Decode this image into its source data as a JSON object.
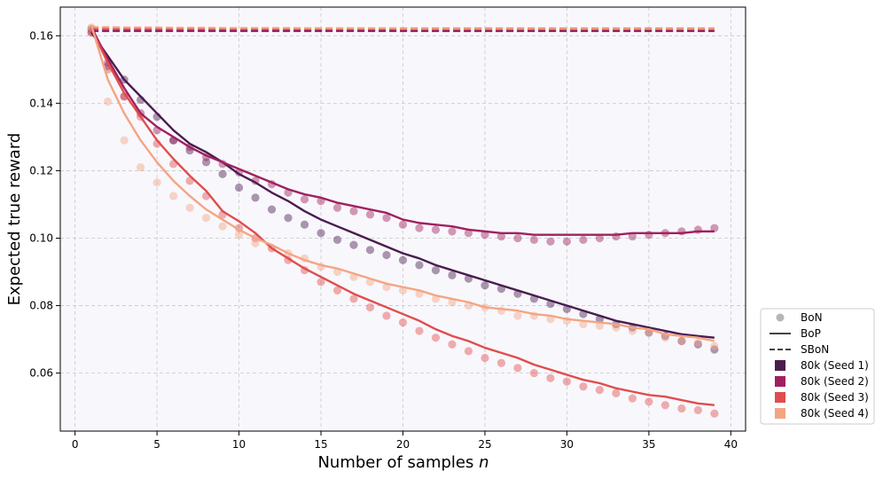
{
  "chart_data": {
    "type": "line",
    "title": "",
    "xlabel": "Number of samples n",
    "xlabel_main": "Number of samples",
    "xlabel_var": "n",
    "ylabel": "Expected true reward",
    "xlim": [
      -0.9,
      40.9
    ],
    "ylim": [
      0.0428,
      0.1685
    ],
    "xticks": [
      0,
      5,
      10,
      15,
      20,
      25,
      30,
      35,
      40
    ],
    "yticks": [
      0.06,
      0.08,
      0.1,
      0.12,
      0.14,
      0.16
    ],
    "ytick_labels": [
      "0.06",
      "0.08",
      "0.10",
      "0.12",
      "0.14",
      "0.16"
    ],
    "grid": true,
    "legend_position": "outside-right-bottom",
    "legend": {
      "styles": [
        {
          "label": "BoN",
          "marker": "circle"
        },
        {
          "label": "BoP",
          "marker": "solid-line"
        },
        {
          "label": "SBoN",
          "marker": "dashed-line"
        }
      ],
      "series_labels": [
        "80k (Seed 1)",
        "80k (Seed 2)",
        "80k (Seed 3)",
        "80k (Seed 4)"
      ]
    },
    "x": [
      1,
      2,
      3,
      4,
      5,
      6,
      7,
      8,
      9,
      10,
      11,
      12,
      13,
      14,
      15,
      16,
      17,
      18,
      19,
      20,
      21,
      22,
      23,
      24,
      25,
      26,
      27,
      28,
      29,
      30,
      31,
      32,
      33,
      34,
      35,
      36,
      37,
      38,
      39
    ],
    "series": [
      {
        "name": "80k (Seed 1)",
        "color": "#4a1c4f",
        "bon": [
          0.162,
          0.151,
          0.147,
          0.141,
          0.136,
          0.129,
          0.126,
          0.1225,
          0.119,
          0.115,
          0.112,
          0.1085,
          0.106,
          0.104,
          0.1015,
          0.0995,
          0.098,
          0.0965,
          0.095,
          0.0935,
          0.092,
          0.0905,
          0.089,
          0.088,
          0.086,
          0.085,
          0.0835,
          0.082,
          0.0805,
          0.079,
          0.0775,
          0.076,
          0.0745,
          0.0735,
          0.072,
          0.071,
          0.0695,
          0.0685,
          0.067
        ],
        "bop": [
          0.161,
          0.154,
          0.147,
          0.142,
          0.137,
          0.132,
          0.128,
          0.1255,
          0.1225,
          0.119,
          0.1165,
          0.1135,
          0.111,
          0.108,
          0.1055,
          0.1035,
          0.1015,
          0.0995,
          0.0975,
          0.0955,
          0.094,
          0.092,
          0.0905,
          0.089,
          0.0875,
          0.086,
          0.0845,
          0.083,
          0.0815,
          0.08,
          0.0785,
          0.077,
          0.0755,
          0.0745,
          0.0735,
          0.0725,
          0.0715,
          0.071,
          0.0705
        ],
        "sbon": [
          0.1614,
          0.1614,
          0.1614,
          0.1614,
          0.1614,
          0.1614,
          0.1614,
          0.1614,
          0.1614,
          0.1614,
          0.1614,
          0.1614,
          0.1614,
          0.1614,
          0.1614,
          0.1614,
          0.1614,
          0.1614,
          0.1614,
          0.1614,
          0.1614,
          0.1614,
          0.1614,
          0.1614,
          0.1614,
          0.1614,
          0.1614,
          0.1614,
          0.1614,
          0.1614,
          0.1614,
          0.1614,
          0.1614,
          0.1614,
          0.1614,
          0.1614,
          0.1614,
          0.1614,
          0.1614
        ]
      },
      {
        "name": "80k (Seed 2)",
        "color": "#a0215f",
        "bon": [
          0.161,
          0.152,
          0.142,
          0.137,
          0.132,
          0.129,
          0.127,
          0.124,
          0.122,
          0.1195,
          0.117,
          0.116,
          0.1135,
          0.1115,
          0.111,
          0.109,
          0.108,
          0.107,
          0.106,
          0.104,
          0.103,
          0.1025,
          0.102,
          0.1015,
          0.101,
          0.1005,
          0.1,
          0.0995,
          0.099,
          0.099,
          0.0995,
          0.1,
          0.1005,
          0.1005,
          0.101,
          0.1015,
          0.102,
          0.1025,
          0.103
        ],
        "bop": [
          0.1625,
          0.153,
          0.1445,
          0.137,
          0.133,
          0.13,
          0.127,
          0.1245,
          0.1225,
          0.1205,
          0.1185,
          0.1165,
          0.1145,
          0.113,
          0.112,
          0.1105,
          0.1095,
          0.1085,
          0.1075,
          0.1055,
          0.1045,
          0.104,
          0.1035,
          0.1025,
          0.102,
          0.1015,
          0.1015,
          0.101,
          0.101,
          0.101,
          0.101,
          0.101,
          0.101,
          0.1015,
          0.1015,
          0.1015,
          0.1015,
          0.102,
          0.102
        ],
        "sbon": [
          0.1616,
          0.1616,
          0.1616,
          0.1616,
          0.1616,
          0.1616,
          0.1616,
          0.1616,
          0.1616,
          0.1616,
          0.1616,
          0.1616,
          0.1616,
          0.1616,
          0.1616,
          0.1616,
          0.1616,
          0.1616,
          0.1616,
          0.1616,
          0.1616,
          0.1616,
          0.1616,
          0.1616,
          0.1616,
          0.1616,
          0.1616,
          0.1616,
          0.1616,
          0.1616,
          0.1616,
          0.1616,
          0.1616,
          0.1616,
          0.1616,
          0.1616,
          0.1616,
          0.1616,
          0.1616
        ]
      },
      {
        "name": "80k (Seed 3)",
        "color": "#e04d4d",
        "bon": [
          0.161,
          0.15,
          0.142,
          0.136,
          0.128,
          0.122,
          0.117,
          0.1125,
          0.107,
          0.103,
          0.1,
          0.097,
          0.0935,
          0.0905,
          0.087,
          0.0845,
          0.082,
          0.0795,
          0.077,
          0.075,
          0.0725,
          0.0705,
          0.0685,
          0.0665,
          0.0645,
          0.063,
          0.0615,
          0.06,
          0.0585,
          0.0575,
          0.056,
          0.055,
          0.054,
          0.0525,
          0.0515,
          0.0505,
          0.0495,
          0.049,
          0.048
        ],
        "bop": [
          0.162,
          0.152,
          0.143,
          0.136,
          0.129,
          0.1235,
          0.1185,
          0.114,
          0.108,
          0.105,
          0.1015,
          0.097,
          0.094,
          0.091,
          0.0885,
          0.086,
          0.0835,
          0.0815,
          0.0795,
          0.0775,
          0.0755,
          0.073,
          0.071,
          0.0695,
          0.0675,
          0.066,
          0.0645,
          0.0625,
          0.061,
          0.0595,
          0.058,
          0.057,
          0.0555,
          0.0545,
          0.0535,
          0.053,
          0.052,
          0.051,
          0.0505
        ],
        "sbon": [
          0.1622,
          0.1622,
          0.1622,
          0.1622,
          0.1622,
          0.1622,
          0.1622,
          0.1622,
          0.1622,
          0.1622,
          0.1622,
          0.1622,
          0.1622,
          0.1622,
          0.1622,
          0.1622,
          0.1622,
          0.1622,
          0.1622,
          0.1622,
          0.1622,
          0.1622,
          0.1622,
          0.1622,
          0.1622,
          0.1622,
          0.1622,
          0.1622,
          0.1622,
          0.1622,
          0.1622,
          0.1622,
          0.1622,
          0.1622,
          0.1622,
          0.1622,
          0.1622,
          0.1622,
          0.1622
        ]
      },
      {
        "name": "80k (Seed 4)",
        "color": "#f4a582",
        "bon": [
          0.1625,
          0.1405,
          0.129,
          0.121,
          0.1165,
          0.1125,
          0.109,
          0.106,
          0.1035,
          0.101,
          0.0985,
          0.097,
          0.0955,
          0.094,
          0.0915,
          0.09,
          0.0885,
          0.087,
          0.0855,
          0.0845,
          0.0835,
          0.082,
          0.081,
          0.08,
          0.0795,
          0.0785,
          0.077,
          0.077,
          0.076,
          0.0755,
          0.0745,
          0.074,
          0.0735,
          0.0725,
          0.072,
          0.0705,
          0.0695,
          0.069,
          0.068
        ],
        "bop": [
          0.163,
          0.147,
          0.137,
          0.129,
          0.1225,
          0.117,
          0.1125,
          0.1085,
          0.1055,
          0.1025,
          0.1,
          0.098,
          0.0955,
          0.0935,
          0.092,
          0.091,
          0.0895,
          0.088,
          0.0865,
          0.0855,
          0.0845,
          0.083,
          0.082,
          0.081,
          0.0795,
          0.079,
          0.0785,
          0.0775,
          0.077,
          0.076,
          0.0755,
          0.075,
          0.0745,
          0.0735,
          0.073,
          0.0715,
          0.071,
          0.0705,
          0.0695
        ],
        "sbon": [
          0.1626,
          0.1626,
          0.1625,
          0.1625,
          0.1625,
          0.1624,
          0.1624,
          0.1624,
          0.1623,
          0.1623,
          0.1623,
          0.1623,
          0.1623,
          0.1622,
          0.1622,
          0.1622,
          0.1622,
          0.1622,
          0.1622,
          0.1621,
          0.1621,
          0.1621,
          0.1621,
          0.1621,
          0.1621,
          0.1621,
          0.1621,
          0.1621,
          0.1621,
          0.1621,
          0.1621,
          0.1621,
          0.1621,
          0.1621,
          0.1621,
          0.1621,
          0.1621,
          0.1621,
          0.1621
        ]
      }
    ]
  }
}
